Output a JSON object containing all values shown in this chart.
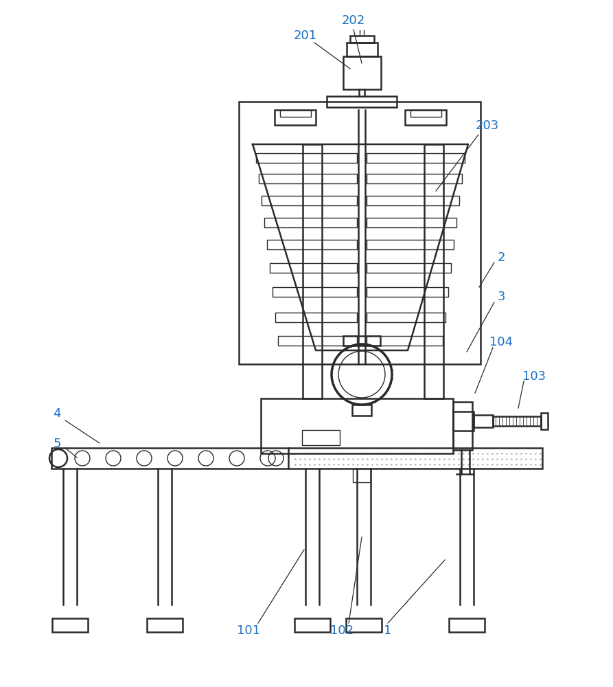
{
  "bg_color": "#ffffff",
  "line_color": "#2a2a2a",
  "line_width": 1.8,
  "thin_lw": 1.0,
  "label_color": "#1a6fc4",
  "label_fontsize": 13,
  "arrow_color": "#2a2a2a"
}
